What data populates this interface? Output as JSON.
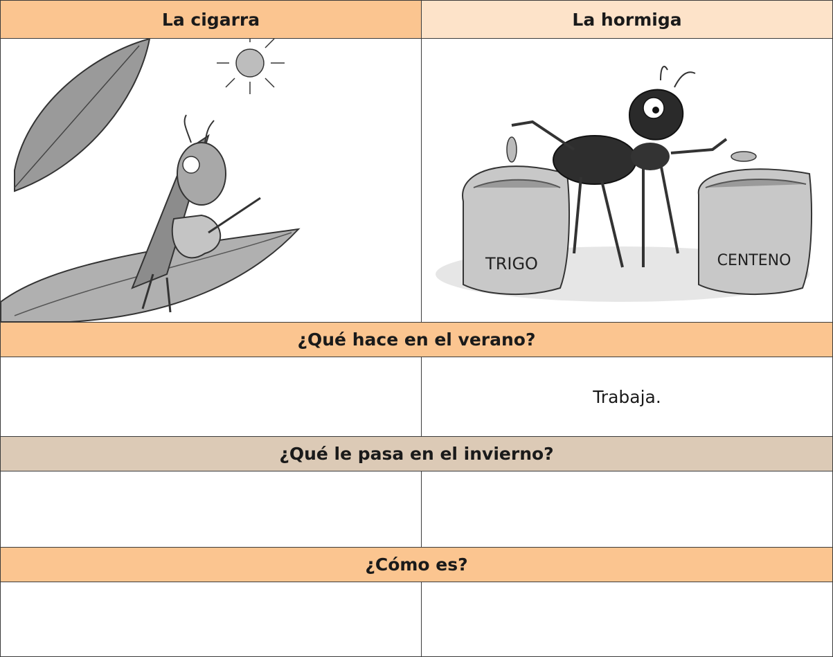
{
  "table": {
    "header": [
      "La cigarra",
      "La hormiga"
    ],
    "illustration": {
      "sack_left": "TRIGO",
      "sack_right": "CENTENO"
    },
    "sections": [
      {
        "question": "¿Qué hace en el verano?",
        "ant_answer": "Trabaja."
      },
      {
        "question": "¿Qué le pasa en el invierno?"
      },
      {
        "question": "¿Cómo es?"
      }
    ]
  }
}
